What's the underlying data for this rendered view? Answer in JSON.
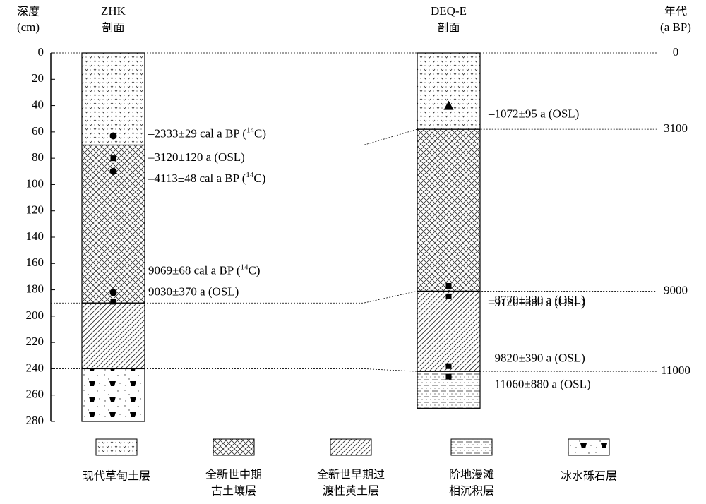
{
  "header": {
    "depth_label": "深度",
    "depth_unit": "(cm)",
    "age_label": "年代",
    "age_unit": "(a BP)"
  },
  "depth_axis": {
    "range": [
      0,
      280
    ],
    "ticks": [
      0,
      20,
      40,
      60,
      80,
      100,
      120,
      140,
      160,
      180,
      200,
      220,
      240,
      260,
      280
    ]
  },
  "legend": [
    "现代草甸土层",
    "全新世中期\n古土壤层",
    "全新世早期过\n渡性黄土层",
    "阶地漫滩\n相沉积层",
    "冰水砾石层"
  ],
  "profiles": [
    {
      "name": "ZHK",
      "subtitle": "剖面",
      "layers": [
        {
          "unit": "现代草甸土层",
          "top": 0,
          "bottom": 70
        },
        {
          "unit": "全新世中期\n古土壤层",
          "top": 70,
          "bottom": 190
        },
        {
          "unit": "全新世早期过\n渡性黄土层",
          "top": 190,
          "bottom": 240
        },
        {
          "unit": "冰水砾石层",
          "top": 240,
          "bottom": 280
        }
      ],
      "samples": [
        {
          "depth": 63,
          "marker": "circle",
          "label": "–2333±29 cal a BP (",
          "sup": "14",
          "tail": "C)"
        },
        {
          "depth": 80,
          "marker": "square",
          "label": "–3120±120 a (OSL)"
        },
        {
          "depth": 90,
          "marker": "circle",
          "label": "–4113±48 cal a BP (",
          "sup": "14",
          "tail": "C)"
        },
        {
          "depth": 182,
          "marker": "circle",
          "label": "9069±68 cal a BP (",
          "sup": "14",
          "tail": "C)"
        },
        {
          "depth": 189,
          "marker": "square",
          "label": "9030±370 a (OSL)"
        }
      ]
    },
    {
      "name": "DEQ-E",
      "subtitle": "剖面",
      "layers": [
        {
          "unit": "现代草甸土层",
          "top": 0,
          "bottom": 58
        },
        {
          "unit": "全新世中期\n古土壤层",
          "top": 58,
          "bottom": 181
        },
        {
          "unit": "全新世早期过\n渡性黄土层",
          "top": 181,
          "bottom": 242
        },
        {
          "unit": "阶地漫滩\n相沉积层",
          "top": 242,
          "bottom": 270
        }
      ],
      "samples": [
        {
          "depth": 40,
          "marker": "triangle",
          "label": "–1072±95 a (OSL)"
        },
        {
          "depth": 177,
          "marker": "square",
          "label": "–8770±330 a (OSL)"
        },
        {
          "depth": 185,
          "marker": "square",
          "label": "–9120±380 a (OSL)"
        },
        {
          "depth": 238,
          "marker": "square",
          "label": "–9820±390 a (OSL)"
        },
        {
          "depth": 246,
          "marker": "square",
          "label": "–11060±880 a (OSL)"
        }
      ]
    }
  ],
  "boundaries": [
    {
      "age": 0,
      "zhk_depth": 0,
      "deq_depth": 0
    },
    {
      "age": 3100,
      "zhk_depth": 70,
      "deq_depth": 58
    },
    {
      "age": 9000,
      "zhk_depth": 190,
      "deq_depth": 181
    },
    {
      "age": 11000,
      "zhk_depth": 240,
      "deq_depth": 242
    }
  ]
}
